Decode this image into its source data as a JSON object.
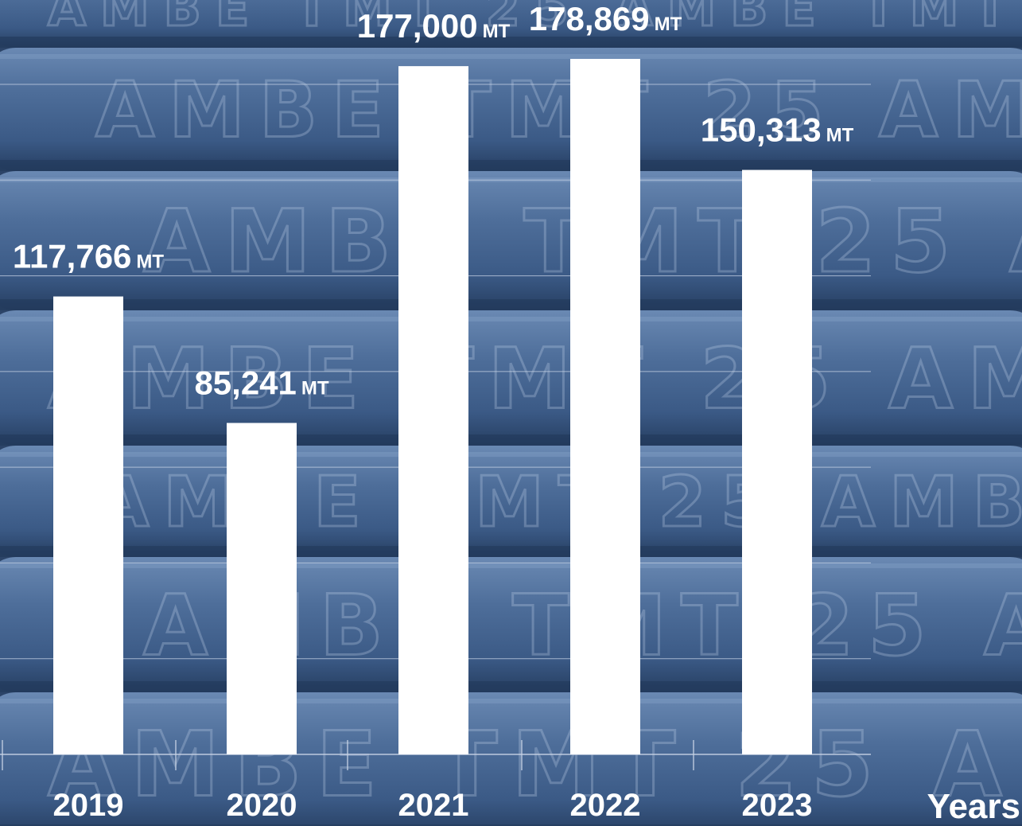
{
  "colors": {
    "bar": "#ffffff",
    "gridline": "#c9d4e6",
    "text": "#ffffff",
    "background_base": "#3f5f8c",
    "background_dark": "#2c4468",
    "background_light": "#5878a3"
  },
  "background": {
    "icon": "steel-rebar-bundle-photo",
    "embossed_text": [
      "AMBE TMT 25"
    ]
  },
  "chart_data": {
    "type": "bar",
    "categories": [
      "2019",
      "2020",
      "2021",
      "2022",
      "2023"
    ],
    "values": [
      117766,
      85241,
      177000,
      178869,
      150313
    ],
    "value_labels": [
      "117,766",
      "85,241",
      "177,000",
      "178,869",
      "150,313"
    ],
    "unit": "MT",
    "title": "",
    "xlabel": "Years",
    "ylabel": "",
    "ylim": [
      0,
      180000
    ],
    "grid": true
  }
}
